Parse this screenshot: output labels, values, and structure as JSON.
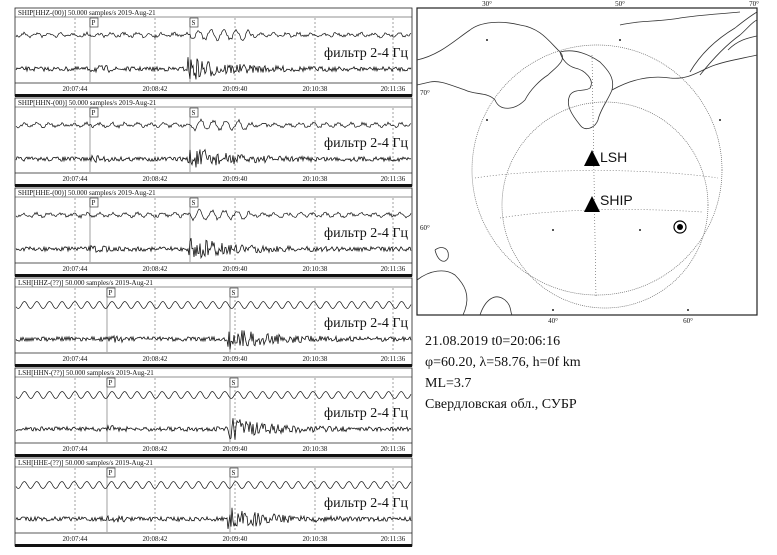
{
  "panels": [
    {
      "header": "SHIP[HHZ-(00)] 50.000 samples/s 2019-Aug-21",
      "filter": "фильтр 2-4 Гц",
      "p_label": "P",
      "s_label": "S",
      "times": [
        "20:07:44",
        "20:08:42",
        "20:09:40",
        "20:10:38",
        "20:11:36"
      ]
    },
    {
      "header": "SHIP[HHN-(00)] 50.000 samples/s 2019-Aug-21",
      "filter": "фильтр 2-4 Гц",
      "p_label": "P",
      "s_label": "S",
      "times": [
        "20:07:44",
        "20:08:42",
        "20:09:40",
        "20:10:38",
        "20:11:36"
      ]
    },
    {
      "header": "SHIP[HHE-(00)] 50.000 samples/s 2019-Aug-21",
      "filter": "фильтр 2-4 Гц",
      "p_label": "P",
      "s_label": "S",
      "times": [
        "20:07:44",
        "20:08:42",
        "20:09:40",
        "20:10:38",
        "20:11:36"
      ]
    },
    {
      "header": "LSH[HHZ-(??)] 50.000 samples/s 2019-Aug-21",
      "filter": "фильтр 2-4 Гц",
      "p_label": "P",
      "s_label": "S",
      "times": [
        "20:07:44",
        "20:08:42",
        "20:09:40",
        "20:10:38",
        "20:11:36"
      ]
    },
    {
      "header": "LSH[HHN-(??)] 50.000 samples/s 2019-Aug-21",
      "filter": "фильтр 2-4 Гц",
      "p_label": "P",
      "s_label": "S",
      "times": [
        "20:07:44",
        "20:08:42",
        "20:09:40",
        "20:10:38",
        "20:11:36"
      ]
    },
    {
      "header": "LSH[HHE-(??)] 50.000 samples/s 2019-Aug-21",
      "filter": "фильтр 2-4 Гц",
      "p_label": "P",
      "s_label": "S",
      "times": [
        "20:07:44",
        "20:08:42",
        "20:09:40",
        "20:10:38",
        "20:11:36"
      ]
    }
  ],
  "map": {
    "top_labels": [
      "30°",
      "50°",
      "70°"
    ],
    "bottom_labels": [
      "40°",
      "60°"
    ],
    "left_labels": [
      "70°",
      "60°"
    ],
    "stations": [
      "LSH",
      "SHIP"
    ]
  },
  "info": [
    "21.08.2019 t0=20:06:16",
    "φ=60.20, λ=58.76, h=0f km",
    "ML=3.7",
    "Свердловская обл., СУБР"
  ]
}
